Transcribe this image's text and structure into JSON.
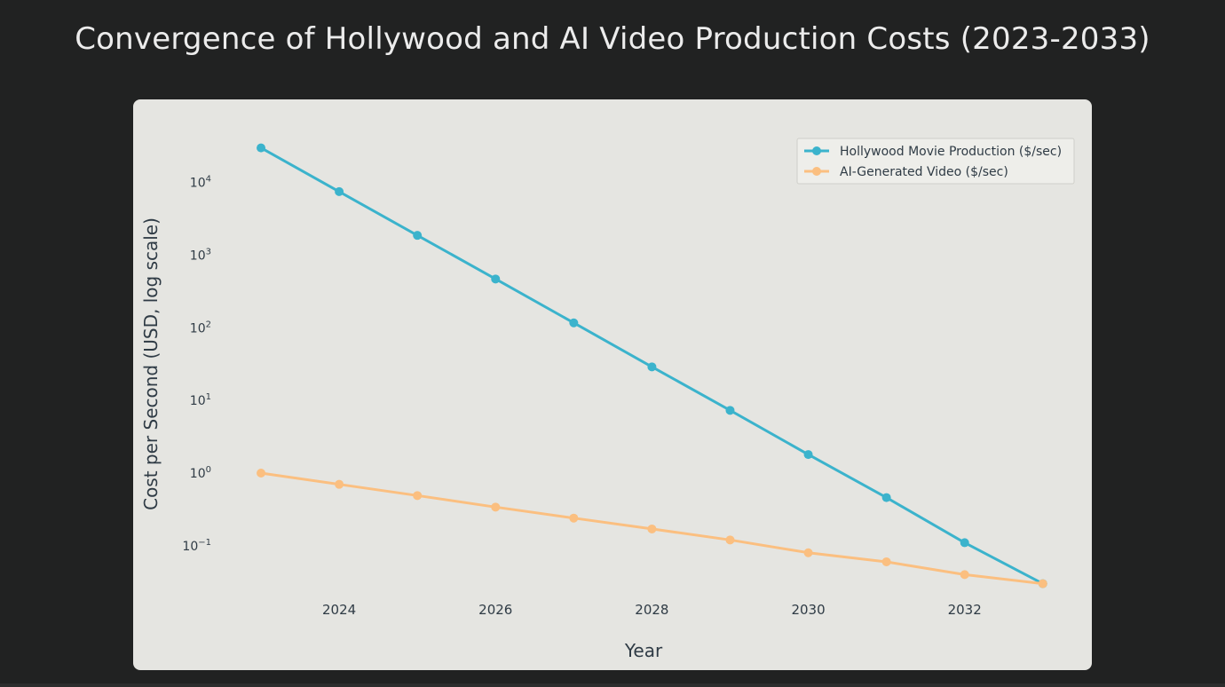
{
  "title": "Convergence of Hollywood and AI Video Production Costs (2023-2033)",
  "chart_data": {
    "type": "line",
    "title": "Convergence of Hollywood and AI Video Production Costs (2023-2033)",
    "xlabel": "Year",
    "ylabel": "Cost per Second (USD, log scale)",
    "yscale": "log",
    "x": [
      2023,
      2024,
      2025,
      2026,
      2027,
      2028,
      2029,
      2030,
      2031,
      2032,
      2033
    ],
    "xlim": [
      2022.5,
      2033.4
    ],
    "ylim": [
      0.02,
      60000
    ],
    "xticks": [
      2024,
      2026,
      2028,
      2030,
      2032
    ],
    "xtick_labels": [
      "2024",
      "2026",
      "2028",
      "2030",
      "2032"
    ],
    "yticks": [
      {
        "value": 0.1,
        "base": "10",
        "exp": "−1"
      },
      {
        "value": 1,
        "base": "10",
        "exp": "0"
      },
      {
        "value": 10,
        "base": "10",
        "exp": "1"
      },
      {
        "value": 100,
        "base": "10",
        "exp": "2"
      },
      {
        "value": 1000,
        "base": "10",
        "exp": "3"
      },
      {
        "value": 10000,
        "base": "10",
        "exp": "4"
      }
    ],
    "grid": false,
    "legend_position": "top-right",
    "series": [
      {
        "name": "Hollywood Movie Production ($/sec)",
        "color": "#3bb3cc",
        "values": [
          30000,
          7500,
          1875,
          470,
          117,
          29,
          7.3,
          1.8,
          0.46,
          0.11,
          0.03
        ]
      },
      {
        "name": "AI-Generated Video ($/sec)",
        "color": "#fbbf80",
        "values": [
          1.0,
          0.7,
          0.49,
          0.34,
          0.24,
          0.17,
          0.12,
          0.08,
          0.06,
          0.04,
          0.03
        ]
      }
    ]
  },
  "colors": {
    "page_background": "#212222",
    "plot_background": "#e5e5e1",
    "text_dark": "#2f3b45",
    "title_text": "#ececec"
  }
}
